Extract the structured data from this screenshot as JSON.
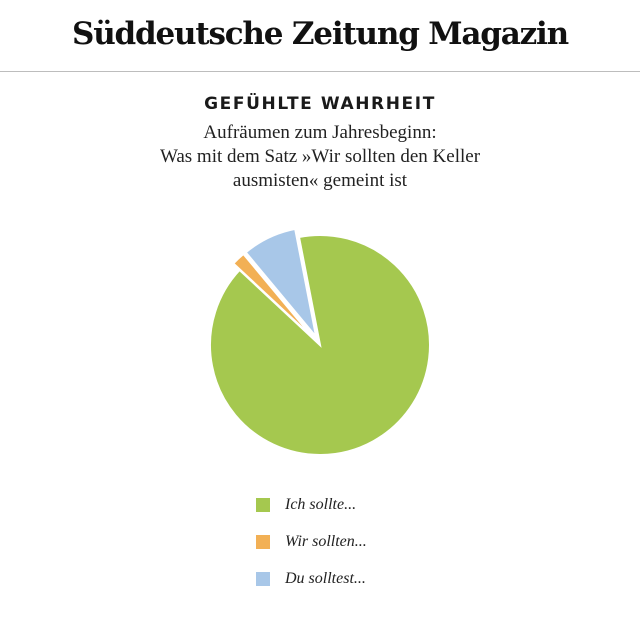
{
  "masthead": {
    "title": "Süddeutsche Zeitung Magazin"
  },
  "headline": "GEFÜHLTE WAHRHEIT",
  "subtitle_lines": [
    "Aufräumen zum Jahresbeginn:",
    "Was mit dem Satz »Wir sollten den Keller",
    "ausmisten« gemeint ist"
  ],
  "chart_data": {
    "type": "pie",
    "title": "GEFÜHLTE WAHRHEIT",
    "subtitle": "Aufräumen zum Jahresbeginn: Was mit dem Satz »Wir sollten den Keller ausmisten« gemeint ist",
    "labels": [
      "Ich sollte...",
      "Wir sollten...",
      "Du solltest..."
    ],
    "values": [
      90,
      2,
      8
    ],
    "colors": [
      "#a5c84f",
      "#f2b055",
      "#a8c7e8"
    ],
    "exploded": [
      false,
      true,
      true
    ],
    "start_angle_deg": -11,
    "legend_position": "bottom"
  }
}
